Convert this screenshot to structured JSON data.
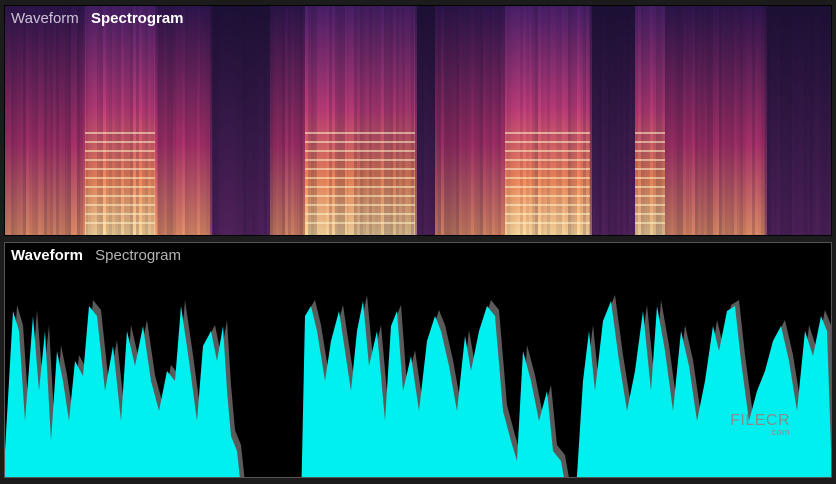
{
  "spectrogram_panel": {
    "tab_waveform": "Waveform",
    "tab_spectrogram": "Spectrogram",
    "active_tab": "Spectrogram"
  },
  "waveform_panel": {
    "tab_waveform": "Waveform",
    "tab_spectrogram": "Spectrogram",
    "active_tab": "Waveform"
  },
  "watermark": {
    "name": "FILECR",
    "suffix": ".com"
  },
  "colors": {
    "spectrogram_bg": "#1a0f2e",
    "spectrogram_hot": "#ffd28a",
    "spectrogram_mid": "#e0507a",
    "waveform_fill": "#00f0f0",
    "waveform_shadow": "#5a5a5a",
    "waveform_bg": "#000000"
  }
}
